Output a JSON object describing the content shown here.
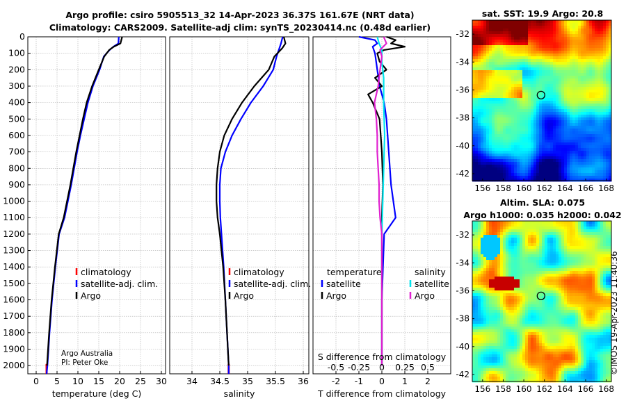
{
  "title": {
    "line1": "Argo profile: csiro 5905513_32 14-Apr-2023 36.37S 161.67E (NRT data)",
    "line2": "Climatology: CARS2009. Satellite-adj clim: synTS_20230414.nc (0.48d earlier)"
  },
  "colors": {
    "climatology": "#ff0000",
    "satellite_adj_clim": "#0000ff",
    "argo": "#000000",
    "satellite_S": "#00e5ee",
    "argo_S": "#e020d0",
    "grid": "#b0b0b0"
  },
  "chart_data": [
    {
      "type": "line",
      "name": "temperature-profile",
      "xlabel": "temperature (deg C)",
      "ylabel": "",
      "xlim": [
        -2,
        31
      ],
      "ylim": [
        2050,
        0
      ],
      "x_ticks": [
        0,
        5,
        10,
        15,
        20,
        25,
        30
      ],
      "y_ticks": [
        0,
        100,
        200,
        300,
        400,
        500,
        600,
        700,
        800,
        900,
        1000,
        1100,
        1200,
        1300,
        1400,
        1500,
        1600,
        1700,
        1800,
        1900,
        2000
      ],
      "legend": [
        "climatology",
        "satellite-adj. clim.",
        "Argo"
      ],
      "credit": [
        "Argo Australia",
        "PI: Peter Oke"
      ],
      "series": [
        {
          "name": "climatology",
          "depth": [
            1990,
            2050
          ],
          "values": [
            2.5,
            2.5
          ]
        },
        {
          "name": "satellite-adj. clim.",
          "depth": [
            0,
            40,
            60,
            80,
            120,
            200,
            300,
            400,
            500,
            600,
            700,
            800,
            900,
            1000,
            1100,
            1200,
            1400,
            1600,
            1800,
            2000,
            2050
          ],
          "values": [
            19.8,
            19.7,
            18.5,
            17.6,
            16.2,
            15.2,
            13.6,
            12.4,
            11.5,
            10.6,
            9.8,
            9.1,
            8.4,
            7.6,
            6.8,
            5.5,
            4.6,
            3.8,
            3.2,
            2.7,
            2.5
          ]
        },
        {
          "name": "Argo",
          "depth": [
            0,
            20,
            40,
            60,
            80,
            120,
            200,
            300,
            400,
            500,
            600,
            700,
            800,
            900,
            1000,
            1100,
            1200,
            1400,
            1600,
            1800,
            2000
          ],
          "values": [
            20.6,
            20.4,
            20.2,
            18.6,
            17.5,
            16.3,
            15.0,
            13.4,
            12.1,
            11.2,
            10.4,
            9.6,
            8.9,
            8.2,
            7.4,
            6.6,
            5.4,
            4.5,
            3.7,
            3.1,
            2.6
          ]
        }
      ]
    },
    {
      "type": "line",
      "name": "salinity-profile",
      "xlabel": "salinity",
      "ylabel": "",
      "xlim": [
        33.6,
        36.1
      ],
      "ylim": [
        2050,
        0
      ],
      "x_ticks": [
        34,
        34.5,
        35,
        35.5,
        36
      ],
      "legend": [
        "climatology",
        "satellite-adj. clim.",
        "Argo"
      ],
      "series": [
        {
          "name": "climatology",
          "depth": [
            1990,
            2050
          ],
          "values": [
            34.66,
            34.66
          ]
        },
        {
          "name": "satellite-adj. clim.",
          "depth": [
            0,
            40,
            70,
            120,
            200,
            300,
            400,
            500,
            600,
            700,
            800,
            900,
            1000,
            1100,
            1200,
            1300,
            1400,
            1600,
            1800,
            2000,
            2050
          ],
          "values": [
            35.63,
            35.6,
            35.57,
            35.52,
            35.46,
            35.28,
            35.06,
            34.88,
            34.72,
            34.6,
            34.52,
            34.5,
            34.5,
            34.51,
            34.53,
            34.55,
            34.57,
            34.6,
            34.63,
            34.66,
            34.66
          ]
        },
        {
          "name": "Argo",
          "depth": [
            0,
            40,
            70,
            120,
            200,
            300,
            400,
            500,
            600,
            700,
            800,
            900,
            1000,
            1100,
            1200,
            1300,
            1400,
            1600,
            1800,
            2000
          ],
          "values": [
            35.65,
            35.68,
            35.62,
            35.48,
            35.38,
            35.12,
            34.9,
            34.72,
            34.58,
            34.5,
            34.46,
            34.44,
            34.44,
            34.46,
            34.5,
            34.53,
            34.56,
            34.6,
            34.63,
            34.66
          ]
        }
      ]
    },
    {
      "type": "line",
      "name": "difference-profile",
      "xlabel": "T difference from climatology",
      "xlabel_top": "S difference from climatology",
      "ylabel": "",
      "xlim": [
        -3,
        3
      ],
      "ylim": [
        2050,
        0
      ],
      "x_ticks_T": [
        -2,
        -1,
        0,
        1,
        2
      ],
      "x_ticks_S": [
        -0.5,
        -0.25,
        0,
        0.25,
        0.5
      ],
      "x_ticks_S_labels": [
        "-0.5",
        "-0.25",
        "0",
        "0.25",
        "0.5"
      ],
      "legend_T_header": "temperature",
      "legend_S_header": "salinity",
      "legend_T": [
        "satellite",
        "Argo"
      ],
      "legend_S": [
        "satellite",
        "Argo"
      ],
      "series": [
        {
          "name": "T satellite",
          "depth": [
            0,
            20,
            40,
            60,
            100,
            200,
            300,
            400,
            500,
            700,
            900,
            1000,
            1100,
            1200,
            1400,
            1600,
            1800,
            2000
          ],
          "values": [
            -1.0,
            -0.3,
            -0.2,
            -0.4,
            -0.3,
            -0.2,
            -0.1,
            0.1,
            0.2,
            0.3,
            0.4,
            0.5,
            0.6,
            0.1,
            0.05,
            0.0,
            0.0,
            0.0
          ]
        },
        {
          "name": "T Argo",
          "depth": [
            0,
            20,
            40,
            60,
            80,
            100,
            150,
            200,
            250,
            300,
            350,
            400,
            500,
            700,
            900,
            1100,
            1400,
            1700,
            2000
          ],
          "values": [
            0.2,
            0.6,
            0.4,
            1.0,
            0.1,
            -0.2,
            -0.1,
            0.2,
            -0.3,
            0.0,
            -0.6,
            -0.4,
            -0.1,
            0.0,
            0.05,
            0.0,
            0.0,
            0.0,
            0.0
          ]
        },
        {
          "name": "S satellite",
          "depth": [
            0,
            40,
            80,
            150,
            250,
            400,
            600,
            800,
            1000,
            1200,
            1500,
            1800,
            2000
          ],
          "values": [
            -0.05,
            -0.03,
            0.0,
            0.0,
            0.02,
            0.02,
            0.03,
            0.02,
            0.01,
            0.0,
            0.0,
            0.0,
            0.0
          ]
        },
        {
          "name": "S Argo",
          "depth": [
            0,
            40,
            80,
            120,
            200,
            300,
            400,
            500,
            600,
            700,
            800,
            900,
            1000,
            1100,
            1200,
            1400,
            1600,
            1800,
            2000
          ],
          "values": [
            0.02,
            0.05,
            -0.02,
            0.0,
            -0.02,
            -0.04,
            -0.08,
            -0.06,
            -0.05,
            -0.05,
            -0.04,
            -0.03,
            -0.03,
            -0.02,
            0.0,
            0.0,
            0.0,
            0.0,
            0.0
          ]
        }
      ]
    },
    {
      "type": "heatmap",
      "name": "sst-map",
      "title": "sat. SST: 19.9 Argo: 20.8",
      "xlim": [
        155,
        168.5
      ],
      "ylim": [
        -42.5,
        -31
      ],
      "x_ticks": [
        156,
        158,
        160,
        162,
        164,
        166,
        168
      ],
      "y_ticks": [
        -32,
        -34,
        -36,
        -38,
        -40,
        -42
      ],
      "marker": {
        "lon": 161.67,
        "lat": -36.37
      }
    },
    {
      "type": "heatmap",
      "name": "sla-map",
      "title": "Altim. SLA: 0.075",
      "subtitle": "Argo h1000: 0.035 h2000: 0.042",
      "xlim": [
        155,
        168.5
      ],
      "ylim": [
        -42.5,
        -31
      ],
      "x_ticks": [
        156,
        158,
        160,
        162,
        164,
        166,
        168
      ],
      "y_ticks": [
        -32,
        -34,
        -36,
        -38,
        -40,
        -42
      ],
      "marker": {
        "lon": 161.67,
        "lat": -36.37
      }
    }
  ],
  "copyright": "©IMOS 19-Apr-2023 11:40:36"
}
